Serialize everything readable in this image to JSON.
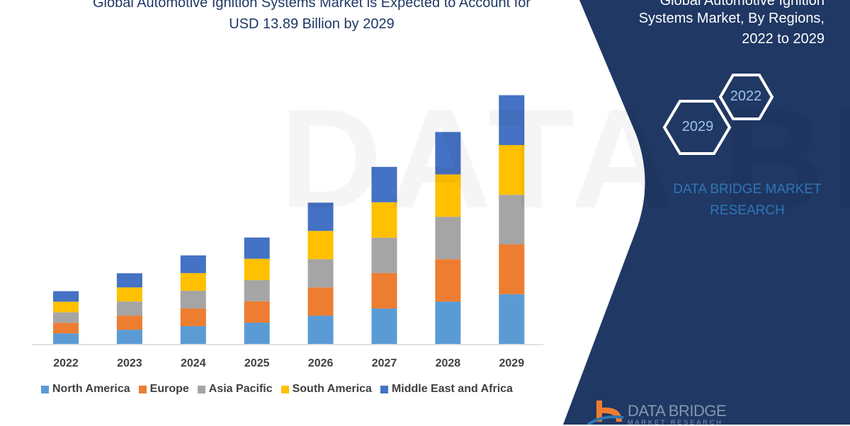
{
  "header": {
    "title_line1": "Global Automotive Ignition Systems Market is Expected to Account for",
    "title_line2": "USD 13.89 Billion by 2029"
  },
  "side_panel": {
    "title_line1": "Global Automotive Ignition",
    "title_line2": "Systems Market, By Regions,",
    "title_line3": "2022 to 2029",
    "hex_start": "2022",
    "hex_end": "2029",
    "brand_line1": "DATA BRIDGE MARKET",
    "brand_line2": "RESEARCH",
    "logo_text": "DATA BRIDGE",
    "logo_sub": "MARKET RESEARCH",
    "panel_color": "#203864"
  },
  "watermark": "DATA BRIDGE",
  "chart_data": {
    "type": "bar",
    "stacked": true,
    "title": "Global Automotive Ignition Systems Market is Expected to Account for USD 13.89 Billion by 2029",
    "xlabel": "",
    "ylabel": "",
    "y_axis_shown": false,
    "grid": false,
    "legend_position": "bottom",
    "unit": "USD Billion (estimated)",
    "categories": [
      "2022",
      "2023",
      "2024",
      "2025",
      "2026",
      "2027",
      "2028",
      "2029"
    ],
    "series": [
      {
        "name": "North America",
        "color": "#5b9bd5",
        "values": [
          0.59,
          0.79,
          0.99,
          1.19,
          1.58,
          1.98,
          2.37,
          2.78
        ]
      },
      {
        "name": "Europe",
        "color": "#ed7d31",
        "values": [
          0.59,
          0.79,
          0.99,
          1.19,
          1.58,
          1.98,
          2.37,
          2.78
        ]
      },
      {
        "name": "Asia Pacific",
        "color": "#a5a5a5",
        "values": [
          0.59,
          0.79,
          0.99,
          1.19,
          1.58,
          1.98,
          2.37,
          2.78
        ]
      },
      {
        "name": "South America",
        "color": "#ffc000",
        "values": [
          0.59,
          0.79,
          0.99,
          1.19,
          1.58,
          1.98,
          2.37,
          2.78
        ]
      },
      {
        "name": "Middle East and Africa",
        "color": "#4472c4",
        "values": [
          0.59,
          0.79,
          0.99,
          1.19,
          1.58,
          1.98,
          2.37,
          2.79
        ]
      }
    ],
    "ylim": [
      0,
      13.89
    ]
  }
}
